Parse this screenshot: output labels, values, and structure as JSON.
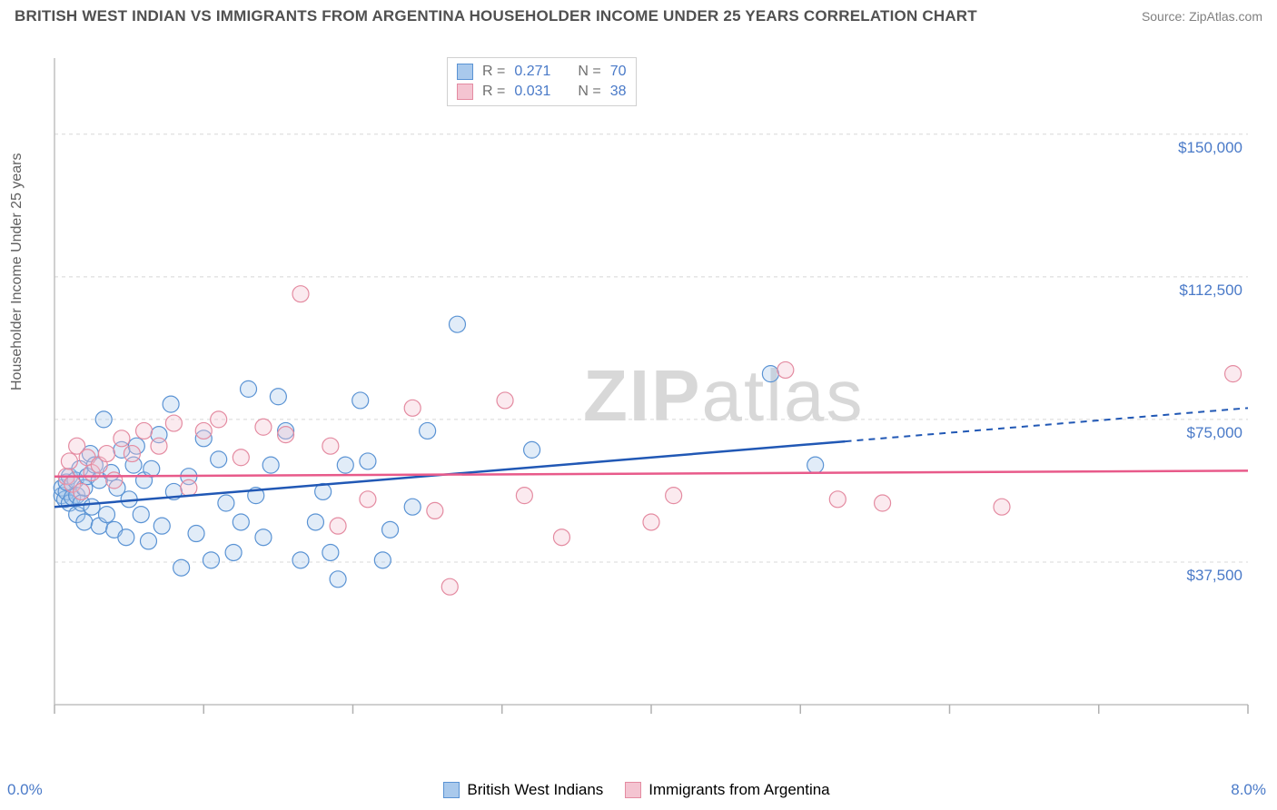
{
  "title": "BRITISH WEST INDIAN VS IMMIGRANTS FROM ARGENTINA HOUSEHOLDER INCOME UNDER 25 YEARS CORRELATION CHART",
  "source": "Source: ZipAtlas.com",
  "y_axis_label": "Householder Income Under 25 years",
  "watermark_a": "ZIP",
  "watermark_b": "atlas",
  "chart": {
    "type": "scatter",
    "xlim": [
      0,
      8
    ],
    "ylim": [
      0,
      170000
    ],
    "x_tick_start_label": "0.0%",
    "x_tick_end_label": "8.0%",
    "y_ticks": [
      {
        "v": 37500,
        "label": "$37,500"
      },
      {
        "v": 75000,
        "label": "$75,000"
      },
      {
        "v": 112500,
        "label": "$112,500"
      },
      {
        "v": 150000,
        "label": "$150,000"
      }
    ],
    "grid_color": "#d8d8d8",
    "axis_color": "#c0c0c0",
    "tick_color": "#b0b0b0",
    "plot_bg": "#ffffff",
    "marker_radius": 9,
    "marker_stroke_width": 1.2,
    "marker_fill_opacity": 0.35,
    "series": [
      {
        "key": "a",
        "label": "British West Indians",
        "color_stroke": "#5a93d4",
        "color_fill": "#a9c9ec",
        "line_color": "#2158b5",
        "R": "0.271",
        "N": "70",
        "trend": {
          "y_at_xmin": 52000,
          "y_at_xmax": 78000,
          "solid_until_x": 5.3
        },
        "points": [
          [
            0.05,
            55000
          ],
          [
            0.05,
            57000
          ],
          [
            0.07,
            54000
          ],
          [
            0.08,
            56000
          ],
          [
            0.08,
            58500
          ],
          [
            0.1,
            53000
          ],
          [
            0.1,
            60000
          ],
          [
            0.12,
            54500
          ],
          [
            0.14,
            59000
          ],
          [
            0.15,
            50000
          ],
          [
            0.15,
            55000
          ],
          [
            0.17,
            62000
          ],
          [
            0.18,
            53000
          ],
          [
            0.2,
            57000
          ],
          [
            0.2,
            48000
          ],
          [
            0.22,
            60000
          ],
          [
            0.24,
            66000
          ],
          [
            0.25,
            52000
          ],
          [
            0.27,
            63000
          ],
          [
            0.3,
            47000
          ],
          [
            0.3,
            59000
          ],
          [
            0.33,
            75000
          ],
          [
            0.35,
            50000
          ],
          [
            0.38,
            61000
          ],
          [
            0.4,
            46000
          ],
          [
            0.42,
            57000
          ],
          [
            0.45,
            67000
          ],
          [
            0.48,
            44000
          ],
          [
            0.5,
            54000
          ],
          [
            0.53,
            63000
          ],
          [
            0.55,
            68000
          ],
          [
            0.58,
            50000
          ],
          [
            0.6,
            59000
          ],
          [
            0.63,
            43000
          ],
          [
            0.65,
            62000
          ],
          [
            0.7,
            71000
          ],
          [
            0.72,
            47000
          ],
          [
            0.78,
            79000
          ],
          [
            0.8,
            56000
          ],
          [
            0.85,
            36000
          ],
          [
            0.9,
            60000
          ],
          [
            0.95,
            45000
          ],
          [
            1.0,
            70000
          ],
          [
            1.05,
            38000
          ],
          [
            1.1,
            64500
          ],
          [
            1.15,
            53000
          ],
          [
            1.2,
            40000
          ],
          [
            1.25,
            48000
          ],
          [
            1.3,
            83000
          ],
          [
            1.35,
            55000
          ],
          [
            1.4,
            44000
          ],
          [
            1.45,
            63000
          ],
          [
            1.5,
            81000
          ],
          [
            1.55,
            72000
          ],
          [
            1.65,
            38000
          ],
          [
            1.75,
            48000
          ],
          [
            1.8,
            56000
          ],
          [
            1.85,
            40000
          ],
          [
            1.9,
            33000
          ],
          [
            1.95,
            63000
          ],
          [
            2.05,
            80000
          ],
          [
            2.1,
            64000
          ],
          [
            2.2,
            38000
          ],
          [
            2.25,
            46000
          ],
          [
            2.4,
            52000
          ],
          [
            2.5,
            72000
          ],
          [
            2.7,
            100000
          ],
          [
            3.2,
            67000
          ],
          [
            4.8,
            87000
          ],
          [
            5.1,
            63000
          ]
        ]
      },
      {
        "key": "b",
        "label": "Immigrants from Argentina",
        "color_stroke": "#e48ba1",
        "color_fill": "#f4c4d1",
        "line_color": "#e85a8a",
        "R": "0.031",
        "N": "38",
        "trend": {
          "y_at_xmin": 60000,
          "y_at_xmax": 61500,
          "solid_until_x": 8.0
        },
        "points": [
          [
            0.08,
            60000
          ],
          [
            0.1,
            64000
          ],
          [
            0.12,
            58000
          ],
          [
            0.15,
            68000
          ],
          [
            0.18,
            56000
          ],
          [
            0.22,
            65000
          ],
          [
            0.25,
            61000
          ],
          [
            0.3,
            63000
          ],
          [
            0.35,
            66000
          ],
          [
            0.4,
            59000
          ],
          [
            0.45,
            70000
          ],
          [
            0.52,
            66000
          ],
          [
            0.6,
            72000
          ],
          [
            0.7,
            68000
          ],
          [
            0.8,
            74000
          ],
          [
            0.9,
            57000
          ],
          [
            1.0,
            72000
          ],
          [
            1.1,
            75000
          ],
          [
            1.25,
            65000
          ],
          [
            1.4,
            73000
          ],
          [
            1.55,
            71000
          ],
          [
            1.65,
            108000
          ],
          [
            1.85,
            68000
          ],
          [
            1.9,
            47000
          ],
          [
            2.1,
            54000
          ],
          [
            2.4,
            78000
          ],
          [
            2.55,
            51000
          ],
          [
            2.65,
            31000
          ],
          [
            3.02,
            80000
          ],
          [
            3.15,
            55000
          ],
          [
            3.4,
            44000
          ],
          [
            4.0,
            48000
          ],
          [
            4.15,
            55000
          ],
          [
            4.9,
            88000
          ],
          [
            5.25,
            54000
          ],
          [
            5.55,
            53000
          ],
          [
            6.35,
            52000
          ],
          [
            7.9,
            87000
          ]
        ]
      }
    ]
  },
  "legend_top": {
    "R_label": "R =",
    "N_label": "N ="
  }
}
